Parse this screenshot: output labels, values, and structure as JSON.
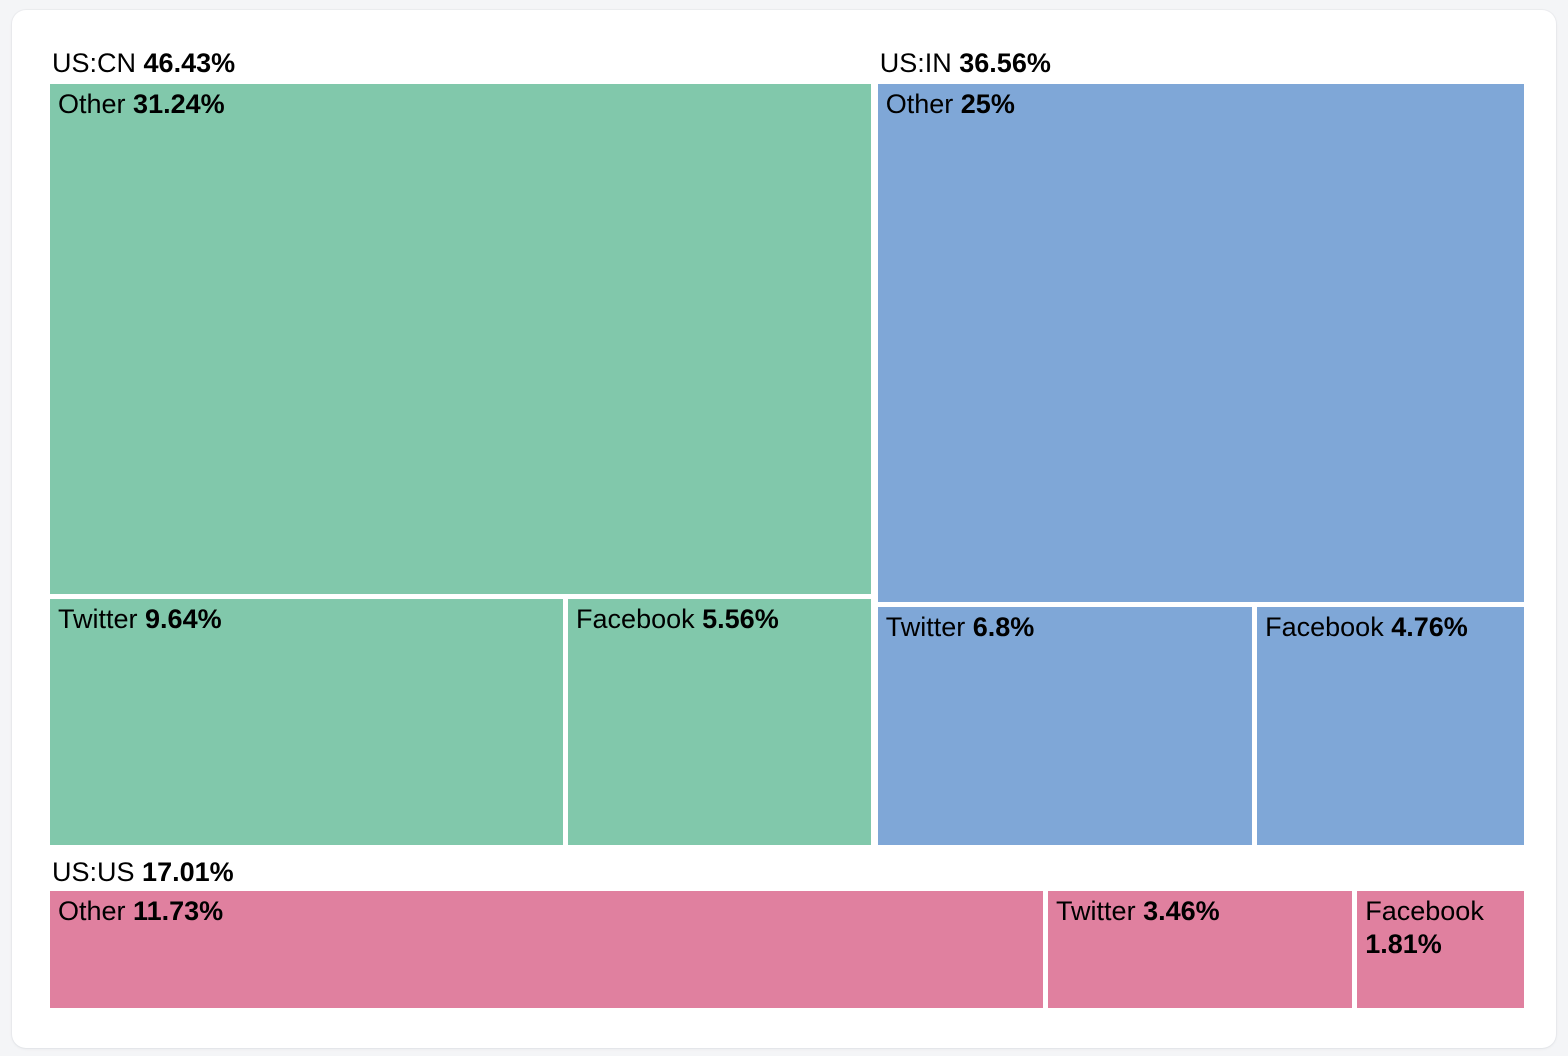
{
  "page": {
    "background_color": "#f4f5f7",
    "card_color": "#ffffff",
    "text_color": "#000000"
  },
  "chart_data": {
    "type": "treemap",
    "title": "",
    "legend": "none",
    "label_position": "top-left",
    "units": "%",
    "groups": [
      {
        "label": "US:CN",
        "value": 46.43,
        "value_label": "46.43%",
        "color": "#81c8ab",
        "children_row_weight": 15.2,
        "children": [
          {
            "label": "Other",
            "value": 31.24,
            "value_label": "31.24%"
          },
          {
            "label": "Twitter",
            "value": 9.64,
            "value_label": "9.64%"
          },
          {
            "label": "Facebook",
            "value": 5.56,
            "value_label": "5.56%"
          }
        ]
      },
      {
        "label": "US:IN",
        "value": 36.56,
        "value_label": "36.56%",
        "color": "#7fa7d7",
        "children_row_weight": 11.56,
        "children": [
          {
            "label": "Other",
            "value": 25,
            "value_label": "25%"
          },
          {
            "label": "Twitter",
            "value": 6.8,
            "value_label": "6.8%"
          },
          {
            "label": "Facebook",
            "value": 4.76,
            "value_label": "4.76%"
          }
        ]
      },
      {
        "label": "US:US",
        "value": 17.01,
        "value_label": "17.01%",
        "color": "#e0809f",
        "children": [
          {
            "label": "Other",
            "value": 11.73,
            "value_label": "11.73%"
          },
          {
            "label": "Twitter",
            "value": 3.46,
            "value_label": "3.46%"
          },
          {
            "label": "Facebook",
            "value": 1.81,
            "value_label": "1.81%"
          }
        ]
      }
    ]
  }
}
